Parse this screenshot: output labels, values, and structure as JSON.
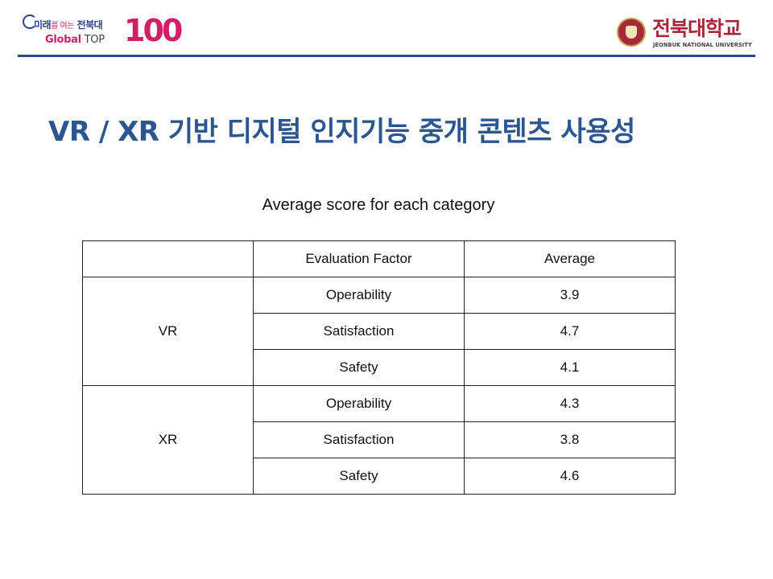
{
  "header": {
    "slogan_main": "미래",
    "slogan_small": "를 여는",
    "slogan_end": " 전북대",
    "global_label": "Global",
    "top_label": " TOP",
    "hundred": "100",
    "university_kr": "전북대학교",
    "university_en": "JEONBUK NATIONAL UNIVERSITY",
    "accent_color": "#2c4a8f",
    "brand_color": "#a8273a"
  },
  "title": "VR / XR 기반 디지털 인지기능 중개 콘텐츠 사용성",
  "table": {
    "caption": "Average score for each category",
    "headers": [
      "",
      "Evaluation Factor",
      "Average"
    ],
    "groups": [
      {
        "name": "VR",
        "rows": [
          {
            "factor": "Operability",
            "average": "3.9"
          },
          {
            "factor": "Satisfaction",
            "average": "4.7"
          },
          {
            "factor": "Safety",
            "average": "4.1"
          }
        ]
      },
      {
        "name": "XR",
        "rows": [
          {
            "factor": "Operability",
            "average": "4.3"
          },
          {
            "factor": "Satisfaction",
            "average": "3.8"
          },
          {
            "factor": "Safety",
            "average": "4.6"
          }
        ]
      }
    ]
  }
}
